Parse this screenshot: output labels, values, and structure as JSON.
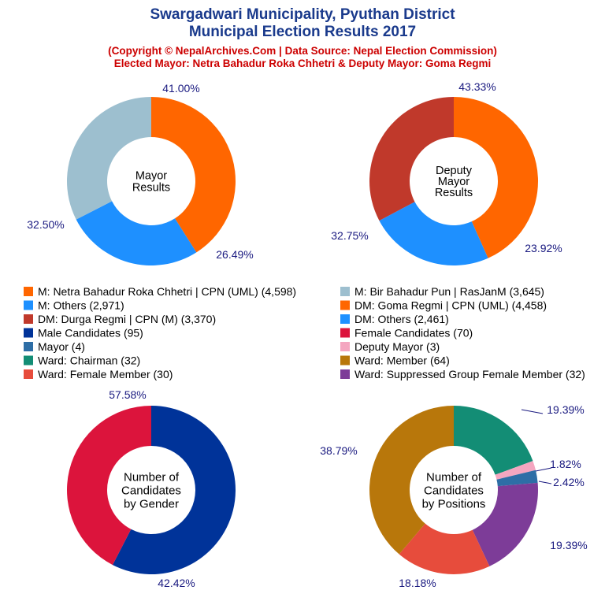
{
  "header": {
    "title_line1": "Swargadwari Municipality, Pyuthan District",
    "title_line2": "Municipal Election Results 2017",
    "subtitle_line1": "(Copyright © NepalArchives.Com | Data Source: Nepal Election Commission)",
    "subtitle_line2": "Elected Mayor: Netra Bahadur Roka Chhetri & Deputy Mayor: Goma Regmi"
  },
  "legend": [
    {
      "label": "M: Netra Bahadur Roka Chhetri | CPN (UML) (4,598)",
      "color": "#ff6600"
    },
    {
      "label": "M: Bir Bahadur Pun | RasJanM (3,645)",
      "color": "#9dbfcf"
    },
    {
      "label": "M: Others (2,971)",
      "color": "#1e90ff"
    },
    {
      "label": "DM: Goma Regmi | CPN (UML) (4,458)",
      "color": "#ff6600"
    },
    {
      "label": "DM: Durga Regmi | CPN (M) (3,370)",
      "color": "#c0392b"
    },
    {
      "label": "DM: Others (2,461)",
      "color": "#1e90ff"
    },
    {
      "label": "Male Candidates (95)",
      "color": "#003399"
    },
    {
      "label": "Female Candidates (70)",
      "color": "#dc143c"
    },
    {
      "label": "Mayor (4)",
      "color": "#2e6ea6"
    },
    {
      "label": "Deputy Mayor (3)",
      "color": "#f4a6c0"
    },
    {
      "label": "Ward: Chairman (32)",
      "color": "#138d75"
    },
    {
      "label": "Ward: Member (64)",
      "color": "#b8770b"
    },
    {
      "label": "Ward: Female Member (30)",
      "color": "#e74c3c"
    },
    {
      "label": "Ward: Suppressed Group Female Member (32)",
      "color": "#7d3c98"
    }
  ],
  "chart_data": [
    {
      "type": "pie",
      "center_label": [
        "Mayor",
        "Results"
      ],
      "slices": [
        {
          "label": "M: Netra Bahadur Roka Chhetri | CPN (UML)",
          "value": 4598,
          "percent": "41.00%",
          "color": "#ff6600"
        },
        {
          "label": "M: Others",
          "value": 2971,
          "percent": "26.49%",
          "color": "#1e90ff"
        },
        {
          "label": "M: Bir Bahadur Pun | RasJanM",
          "value": 3645,
          "percent": "32.50%",
          "color": "#9dbfcf"
        }
      ]
    },
    {
      "type": "pie",
      "center_label": [
        "Deputy",
        "Mayor",
        "Results"
      ],
      "slices": [
        {
          "label": "DM: Goma Regmi | CPN (UML)",
          "value": 4458,
          "percent": "43.33%",
          "color": "#ff6600"
        },
        {
          "label": "DM: Others",
          "value": 2461,
          "percent": "23.92%",
          "color": "#1e90ff"
        },
        {
          "label": "DM: Durga Regmi | CPN (M)",
          "value": 3370,
          "percent": "32.75%",
          "color": "#c0392b"
        }
      ]
    },
    {
      "type": "pie",
      "center_label": [
        "Number of",
        "Candidates",
        "by Gender"
      ],
      "slices": [
        {
          "label": "Male Candidates",
          "value": 95,
          "percent": "57.58%",
          "color": "#003399"
        },
        {
          "label": "Female Candidates",
          "value": 70,
          "percent": "42.42%",
          "color": "#dc143c"
        }
      ]
    },
    {
      "type": "pie",
      "center_label": [
        "Number of",
        "Candidates",
        "by Positions"
      ],
      "slices": [
        {
          "label": "Ward: Chairman",
          "value": 32,
          "percent": "19.39%",
          "color": "#138d75"
        },
        {
          "label": "Deputy Mayor",
          "value": 3,
          "percent": "1.82%",
          "color": "#f4a6c0"
        },
        {
          "label": "Mayor",
          "value": 4,
          "percent": "2.42%",
          "color": "#2e6ea6"
        },
        {
          "label": "Ward: Suppressed Group Female Member",
          "value": 32,
          "percent": "19.39%",
          "color": "#7d3c98"
        },
        {
          "label": "Ward: Female Member",
          "value": 30,
          "percent": "18.18%",
          "color": "#e74c3c"
        },
        {
          "label": "Ward: Member",
          "value": 64,
          "percent": "38.79%",
          "color": "#b8770b"
        }
      ]
    }
  ]
}
